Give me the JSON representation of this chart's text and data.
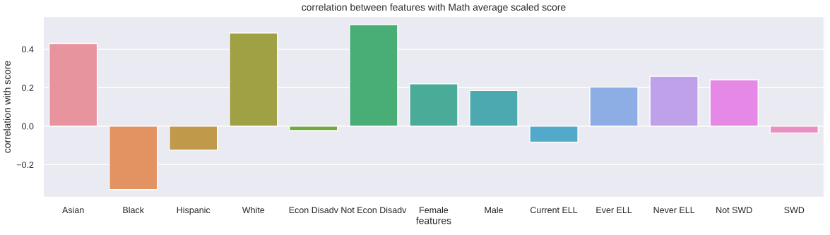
{
  "chart_data": {
    "type": "bar",
    "title": "correlation between features with Math average scaled score",
    "xlabel": "features",
    "ylabel": "correlation with score",
    "categories": [
      "Asian",
      "Black",
      "Hispanic",
      "White",
      "Econ Disadv",
      "Not Econ Disadv",
      "Female",
      "Male",
      "Current ELL",
      "Ever ELL",
      "Never ELL",
      "Not SWD",
      "SWD"
    ],
    "values": [
      0.43,
      -0.33,
      -0.124,
      0.484,
      -0.023,
      0.528,
      0.22,
      0.185,
      -0.083,
      0.203,
      0.259,
      0.241,
      -0.035
    ],
    "colors": [
      "#e8949f",
      "#e39362",
      "#c0994a",
      "#a0a045",
      "#6fab3f",
      "#49ae75",
      "#4aab99",
      "#4ca9b0",
      "#52a9c9",
      "#8daee5",
      "#bfa1ea",
      "#e688e6",
      "#e890c0"
    ],
    "ylim": [
      -0.37,
      0.57
    ],
    "yticks": [
      {
        "value": -0.2,
        "label": "−0.2"
      },
      {
        "value": 0.0,
        "label": "0.0"
      },
      {
        "value": 0.2,
        "label": "0.2"
      },
      {
        "value": 0.4,
        "label": "0.4"
      }
    ],
    "grid": "y"
  }
}
